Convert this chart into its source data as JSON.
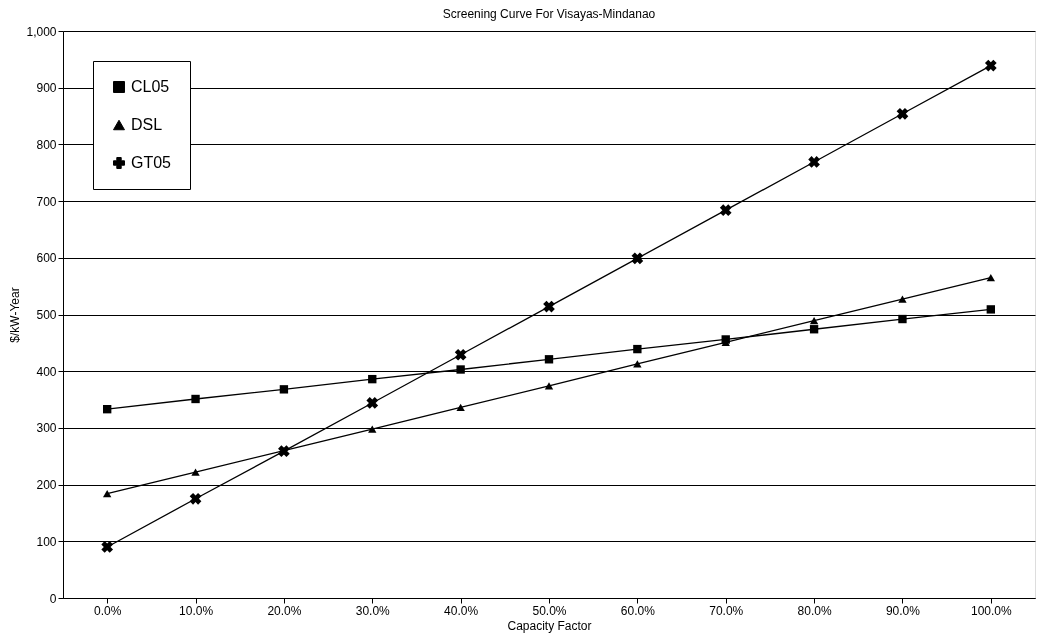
{
  "chart_data": {
    "type": "line",
    "title": "Screening Curve For Visayas-Mindanao",
    "xlabel": "Capacity Factor",
    "ylabel": "$/kW-Year",
    "categories": [
      "0.0%",
      "10.0%",
      "20.0%",
      "30.0%",
      "40.0%",
      "50.0%",
      "60.0%",
      "70.0%",
      "80.0%",
      "90.0%",
      "100.0%"
    ],
    "series": [
      {
        "name": "CL05",
        "color": "#000000",
        "marker": "square",
        "values": [
          333,
          351,
          368,
          386,
          403,
          421,
          439,
          456,
          474,
          492,
          509
        ]
      },
      {
        "name": "DSL",
        "color": "#000000",
        "marker": "triangle",
        "values": [
          184,
          222,
          260,
          298,
          336,
          374,
          413,
          451,
          489,
          527,
          565
        ]
      },
      {
        "name": "GT05",
        "color": "#000000",
        "marker": "cross",
        "values": [
          90,
          175,
          259,
          344,
          429,
          514,
          599,
          684,
          769,
          854,
          939
        ]
      }
    ],
    "ylim": [
      0,
      1000
    ],
    "yticks": [
      0,
      100,
      200,
      300,
      400,
      500,
      600,
      700,
      800,
      900,
      {
        "value": 1000,
        "label": "1,000"
      }
    ],
    "grid": "y",
    "legend": "top left",
    "line_style": "solid"
  }
}
